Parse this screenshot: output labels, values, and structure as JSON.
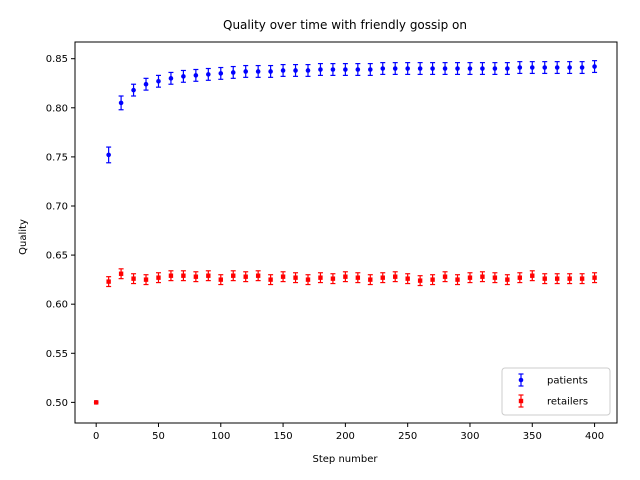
{
  "chart_data": {
    "type": "scatter",
    "title": "Quality over time with friendly gossip on",
    "xlabel": "Step number",
    "ylabel": "Quality",
    "xlim": [
      -17,
      418
    ],
    "ylim": [
      0.479,
      0.867
    ],
    "xticks": [
      0,
      50,
      100,
      150,
      200,
      250,
      300,
      350,
      400
    ],
    "yticks": [
      0.5,
      0.55,
      0.6,
      0.65,
      0.7,
      0.75,
      0.8,
      0.85
    ],
    "ytick_labels": [
      "0.50",
      "0.55",
      "0.60",
      "0.65",
      "0.70",
      "0.75",
      "0.80",
      "0.85"
    ],
    "grid": false,
    "legend_position": "lower right",
    "series": [
      {
        "name": "patients",
        "color": "#0000ff",
        "marker": "circle",
        "x": [
          0,
          10,
          20,
          30,
          40,
          50,
          60,
          70,
          80,
          90,
          100,
          110,
          120,
          130,
          140,
          150,
          160,
          170,
          180,
          190,
          200,
          210,
          220,
          230,
          240,
          250,
          260,
          270,
          280,
          290,
          300,
          310,
          320,
          330,
          340,
          350,
          360,
          370,
          380,
          390,
          400
        ],
        "y": [
          0.5,
          0.752,
          0.805,
          0.818,
          0.824,
          0.827,
          0.83,
          0.832,
          0.833,
          0.834,
          0.835,
          0.836,
          0.837,
          0.837,
          0.837,
          0.838,
          0.838,
          0.838,
          0.839,
          0.839,
          0.839,
          0.839,
          0.839,
          0.84,
          0.84,
          0.84,
          0.84,
          0.84,
          0.84,
          0.84,
          0.84,
          0.84,
          0.84,
          0.84,
          0.841,
          0.841,
          0.841,
          0.841,
          0.841,
          0.841,
          0.842
        ],
        "yerr": [
          0.0,
          0.008,
          0.007,
          0.006,
          0.006,
          0.006,
          0.006,
          0.006,
          0.006,
          0.006,
          0.006,
          0.006,
          0.006,
          0.006,
          0.006,
          0.006,
          0.006,
          0.006,
          0.006,
          0.006,
          0.006,
          0.006,
          0.006,
          0.006,
          0.006,
          0.006,
          0.006,
          0.006,
          0.006,
          0.006,
          0.006,
          0.006,
          0.006,
          0.006,
          0.006,
          0.006,
          0.006,
          0.006,
          0.006,
          0.006,
          0.006
        ]
      },
      {
        "name": "retailers",
        "color": "#ff0000",
        "marker": "square",
        "x": [
          0,
          10,
          20,
          30,
          40,
          50,
          60,
          70,
          80,
          90,
          100,
          110,
          120,
          130,
          140,
          150,
          160,
          170,
          180,
          190,
          200,
          210,
          220,
          230,
          240,
          250,
          260,
          270,
          280,
          290,
          300,
          310,
          320,
          330,
          340,
          350,
          360,
          370,
          380,
          390,
          400
        ],
        "y": [
          0.5,
          0.623,
          0.631,
          0.626,
          0.625,
          0.627,
          0.629,
          0.629,
          0.628,
          0.629,
          0.625,
          0.629,
          0.628,
          0.629,
          0.625,
          0.628,
          0.627,
          0.625,
          0.627,
          0.626,
          0.628,
          0.627,
          0.625,
          0.627,
          0.628,
          0.626,
          0.624,
          0.625,
          0.628,
          0.625,
          0.627,
          0.628,
          0.627,
          0.625,
          0.627,
          0.629,
          0.626,
          0.626,
          0.626,
          0.626,
          0.627
        ],
        "yerr": [
          0.0,
          0.005,
          0.005,
          0.005,
          0.005,
          0.005,
          0.005,
          0.005,
          0.005,
          0.005,
          0.005,
          0.005,
          0.005,
          0.005,
          0.005,
          0.005,
          0.005,
          0.005,
          0.005,
          0.005,
          0.005,
          0.005,
          0.005,
          0.005,
          0.005,
          0.005,
          0.005,
          0.005,
          0.005,
          0.005,
          0.005,
          0.005,
          0.005,
          0.005,
          0.005,
          0.005,
          0.005,
          0.005,
          0.005,
          0.005,
          0.005
        ]
      }
    ]
  }
}
